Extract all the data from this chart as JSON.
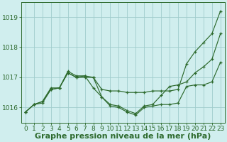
{
  "x": [
    0,
    1,
    2,
    3,
    4,
    5,
    6,
    7,
    8,
    9,
    10,
    11,
    12,
    13,
    14,
    15,
    16,
    17,
    18,
    19,
    20,
    21,
    22,
    23
  ],
  "line1": [
    1015.85,
    1016.1,
    1016.2,
    1016.6,
    1016.65,
    1017.15,
    1017.0,
    1017.05,
    1016.65,
    1016.35,
    1016.05,
    1016.0,
    1015.85,
    1015.75,
    1016.0,
    1016.05,
    1016.1,
    1016.1,
    1016.15,
    1016.7,
    1016.75,
    1016.75,
    1016.85,
    1017.5
  ],
  "line2": [
    1015.85,
    1016.1,
    1016.2,
    1016.65,
    1016.65,
    1017.2,
    1017.05,
    1017.05,
    1017.0,
    1016.35,
    1016.1,
    1016.05,
    1015.9,
    1015.8,
    1016.05,
    1016.1,
    1016.4,
    1016.7,
    1016.75,
    1016.85,
    1017.15,
    1017.35,
    1017.6,
    1018.45
  ],
  "line3": [
    1015.85,
    1016.1,
    1016.15,
    1016.6,
    1016.65,
    1017.15,
    1017.0,
    1017.0,
    1017.0,
    1016.6,
    1016.55,
    1016.55,
    1016.5,
    1016.5,
    1016.5,
    1016.55,
    1016.55,
    1016.55,
    1016.6,
    1017.45,
    1017.85,
    1018.15,
    1018.45,
    1019.2
  ],
  "line_color": "#2d6a2d",
  "bg_color": "#d0eeee",
  "grid_color": "#a0cccc",
  "ylabel_ticks": [
    1016,
    1017,
    1018,
    1019
  ],
  "ylim": [
    1015.5,
    1019.5
  ],
  "xlim": [
    -0.5,
    23.5
  ],
  "xlabel": "Graphe pression niveau de la mer (hPa)",
  "xlabel_fontsize": 8,
  "tick_fontsize": 6.5
}
